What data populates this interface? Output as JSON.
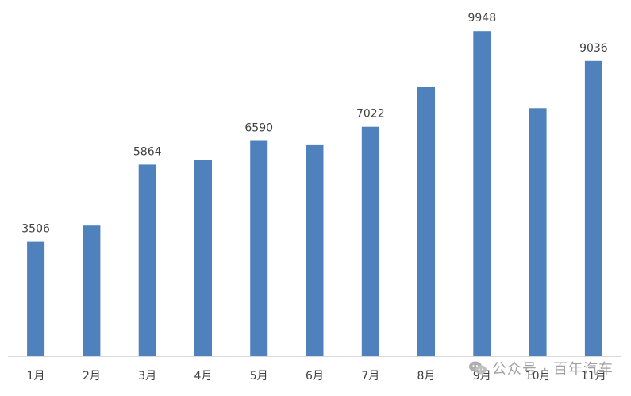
{
  "chart_data": {
    "type": "bar",
    "title": "",
    "xlabel": "",
    "ylabel": "",
    "categories": [
      "1月",
      "2月",
      "3月",
      "4月",
      "5月",
      "6月",
      "7月",
      "8月",
      "9月",
      "10月",
      "11月"
    ],
    "values": [
      3506,
      4000,
      5864,
      6020,
      6590,
      6460,
      7022,
      8230,
      9948,
      7590,
      9036
    ],
    "data_labels": [
      "3506",
      "",
      "5864",
      "",
      "6590",
      "",
      "7022",
      "",
      "9948",
      "",
      "9036"
    ],
    "ylim": [
      0,
      10900
    ],
    "grid": false,
    "legend": "none",
    "bar_color": "#4f81bd",
    "axis_color": "#d9d9d9",
    "label_color": "#404040"
  },
  "watermark": {
    "text": "公众号 · 百年汽车",
    "icon": "wechat-icon",
    "color": "#9a9a9a"
  }
}
